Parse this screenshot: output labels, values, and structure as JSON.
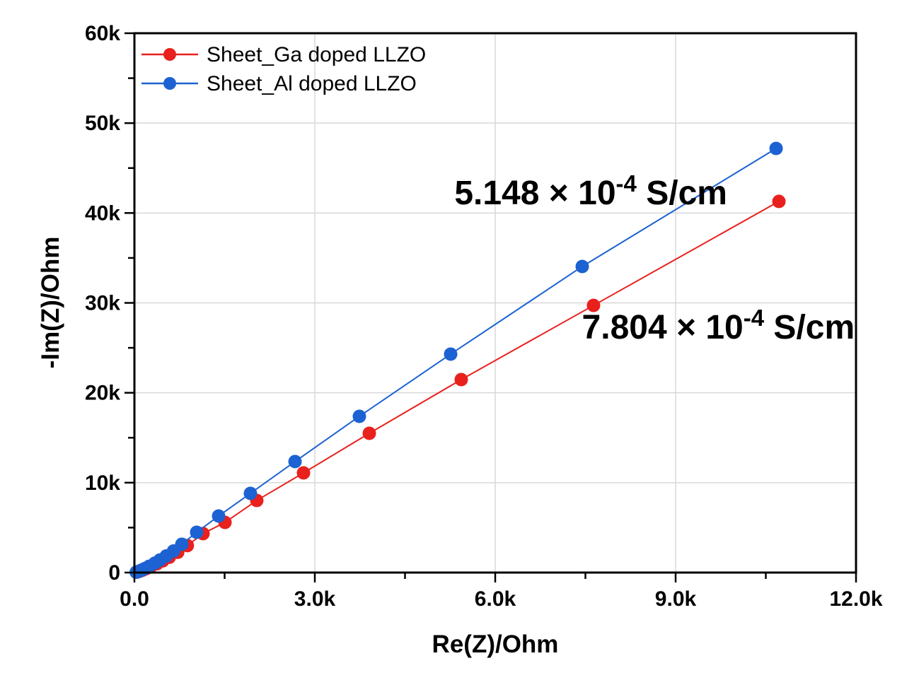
{
  "chart_data": {
    "type": "scatter",
    "title": "",
    "xlabel": "Re(Z)/Ohm",
    "ylabel": "-Im(Z)/Ohm",
    "xlim": [
      0,
      12000
    ],
    "ylim": [
      0,
      60000
    ],
    "grid": true,
    "background_color": "#ffffff",
    "frame_color": "#000000",
    "grid_color": "#d8d8d8",
    "x_axis": {
      "major_ticks": [
        0,
        3000,
        6000,
        9000,
        12000
      ],
      "major_labels": [
        "0.0",
        "3.0k",
        "6.0k",
        "9.0k",
        "12.0k"
      ],
      "minor_ticks": [
        1500,
        4500,
        7500,
        10500
      ]
    },
    "y_axis": {
      "major_ticks": [
        0,
        10000,
        20000,
        30000,
        40000,
        50000,
        60000
      ],
      "major_labels": [
        "0",
        "10k",
        "20k",
        "30k",
        "40k",
        "50k",
        "60k"
      ],
      "minor_ticks": [
        5000,
        15000,
        25000,
        35000,
        45000,
        55000
      ]
    },
    "legend": {
      "position": "top-left",
      "entries": [
        {
          "label": "Sheet_Ga doped LLZO",
          "color": "#e8211d"
        },
        {
          "label": "Sheet_Al doped LLZO",
          "color": "#1c62d2"
        }
      ]
    },
    "series": [
      {
        "name": "Sheet_Ga doped LLZO",
        "color": "#e8211d",
        "marker": "circle",
        "x": [
          35,
          50,
          70,
          100,
          140,
          195,
          270,
          375,
          470,
          580,
          720,
          880,
          1141,
          1506,
          2035,
          2812,
          3906,
          5435,
          7635,
          10718
        ],
        "y": [
          40,
          65,
          110,
          180,
          280,
          430,
          650,
          980,
          1300,
          1700,
          2250,
          3000,
          4330,
          5580,
          8020,
          11090,
          15490,
          21470,
          29720,
          41290
        ]
      },
      {
        "name": "Sheet_Al doped LLZO",
        "color": "#1c62d2",
        "marker": "circle",
        "x": [
          30,
          45,
          65,
          90,
          125,
          175,
          245,
          340,
          425,
          530,
          650,
          788,
          1035,
          1400,
          1929,
          2671,
          3741,
          5259,
          7447,
          10671
        ],
        "y": [
          40,
          70,
          120,
          190,
          290,
          450,
          700,
          1050,
          1400,
          1850,
          2400,
          3150,
          4480,
          6290,
          8810,
          12350,
          17380,
          24300,
          34050,
          47180
        ]
      }
    ],
    "annotations": [
      {
        "label": "5.148 × 10⁻⁴ S/cm",
        "base": "5.148 × 10",
        "sup": "-4",
        "suffix": " S/cm",
        "color": "#2b6fd2",
        "x": 7590,
        "y": 42300
      },
      {
        "label": "7.804 × 10⁻⁴ S/cm",
        "base": "7.804 × 10",
        "sup": "-4",
        "suffix": " S/cm",
        "color": "#ee4343",
        "x": 9710,
        "y": 27370
      }
    ]
  }
}
